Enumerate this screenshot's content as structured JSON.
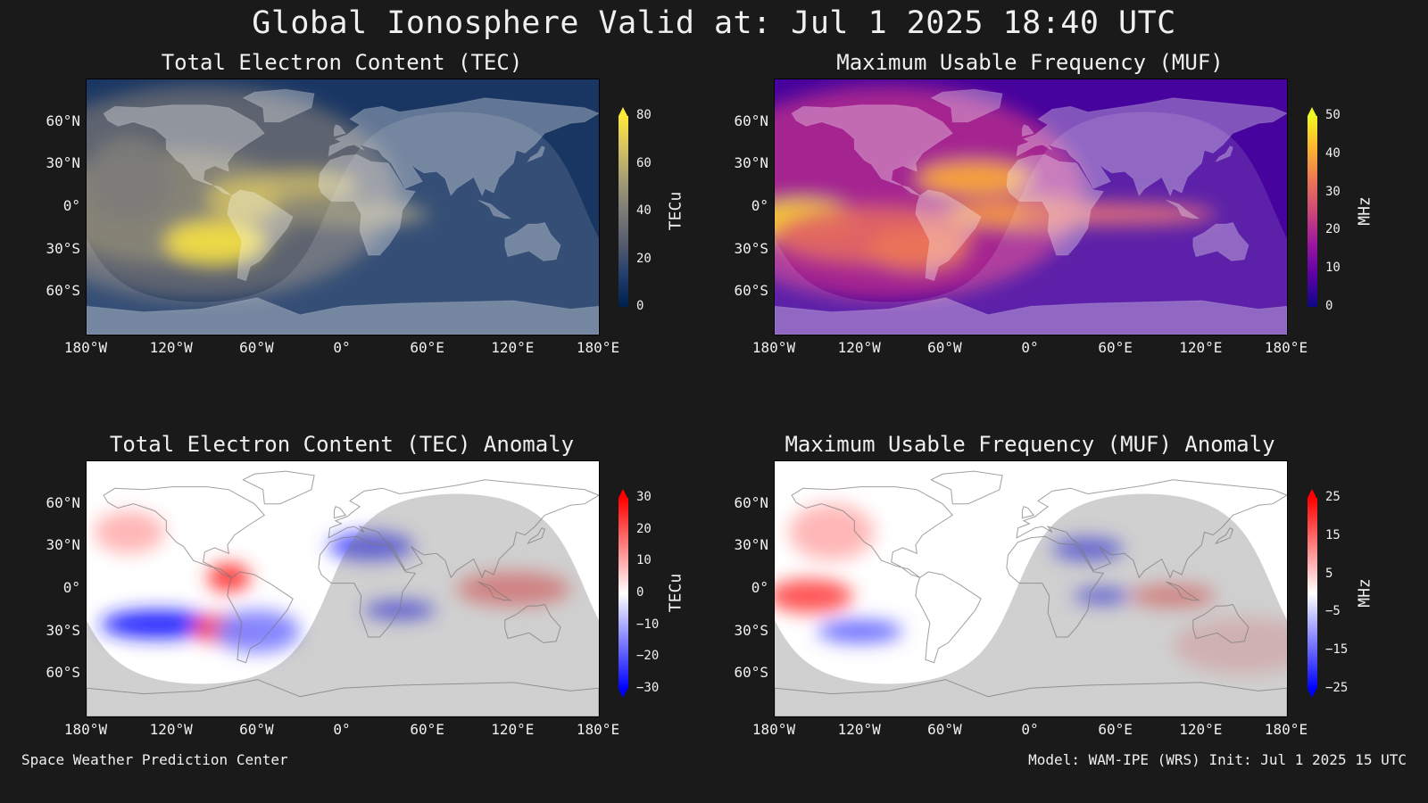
{
  "title": "Global Ionosphere Valid at: Jul 1 2025 18:40 UTC",
  "footer": {
    "left": "Space Weather Prediction Center",
    "right": "Model: WAM-IPE (WRS) Init: Jul 1 2025 15 UTC"
  },
  "lat_ticks": [
    "60°N",
    "30°N",
    "0°",
    "30°S",
    "60°S"
  ],
  "lon_ticks": [
    "180°W",
    "120°W",
    "60°W",
    "0°",
    "60°E",
    "120°E",
    "180°E"
  ],
  "chart_data": [
    {
      "type": "heatmap",
      "title": "Total Electron Content (TEC)",
      "colorbar_label": "TECu",
      "colorbar_ticks": [
        "80",
        "60",
        "40",
        "20",
        "0"
      ],
      "colorbar_range": [
        0,
        80
      ],
      "colormap": [
        "#00204c",
        "#233e6c",
        "#565c6d",
        "#7c7b78",
        "#a69d75",
        "#d3c164",
        "#fee838"
      ],
      "night_shade": true
    },
    {
      "type": "heatmap",
      "title": "Maximum Usable Frequency (MUF)",
      "colorbar_label": "MHz",
      "colorbar_ticks": [
        "50",
        "40",
        "30",
        "20",
        "10",
        "0"
      ],
      "colorbar_range": [
        0,
        50
      ],
      "colormap": [
        "#0d0887",
        "#5c01a6",
        "#9c179e",
        "#cc4778",
        "#ed7953",
        "#fdb42f",
        "#f0f921"
      ],
      "night_shade": true
    },
    {
      "type": "heatmap",
      "title": "Total Electron Content (TEC) Anomaly",
      "colorbar_label": "TECu",
      "colorbar_ticks": [
        "30",
        "20",
        "10",
        "0",
        "−10",
        "−20",
        "−30"
      ],
      "colorbar_range": [
        -30,
        30
      ],
      "colormap": [
        "#0000ff",
        "#8080ff",
        "#ffffff",
        "#ff8080",
        "#ff0000"
      ],
      "night_shade": true
    },
    {
      "type": "heatmap",
      "title": "Maximum Usable Frequency (MUF) Anomaly",
      "colorbar_label": "MHz",
      "colorbar_ticks": [
        "25",
        "15",
        "5",
        "−5",
        "−15",
        "−25"
      ],
      "colorbar_range": [
        -25,
        25
      ],
      "colormap": [
        "#0000ff",
        "#8080ff",
        "#ffffff",
        "#ff8080",
        "#ff0000"
      ],
      "night_shade": true
    }
  ]
}
